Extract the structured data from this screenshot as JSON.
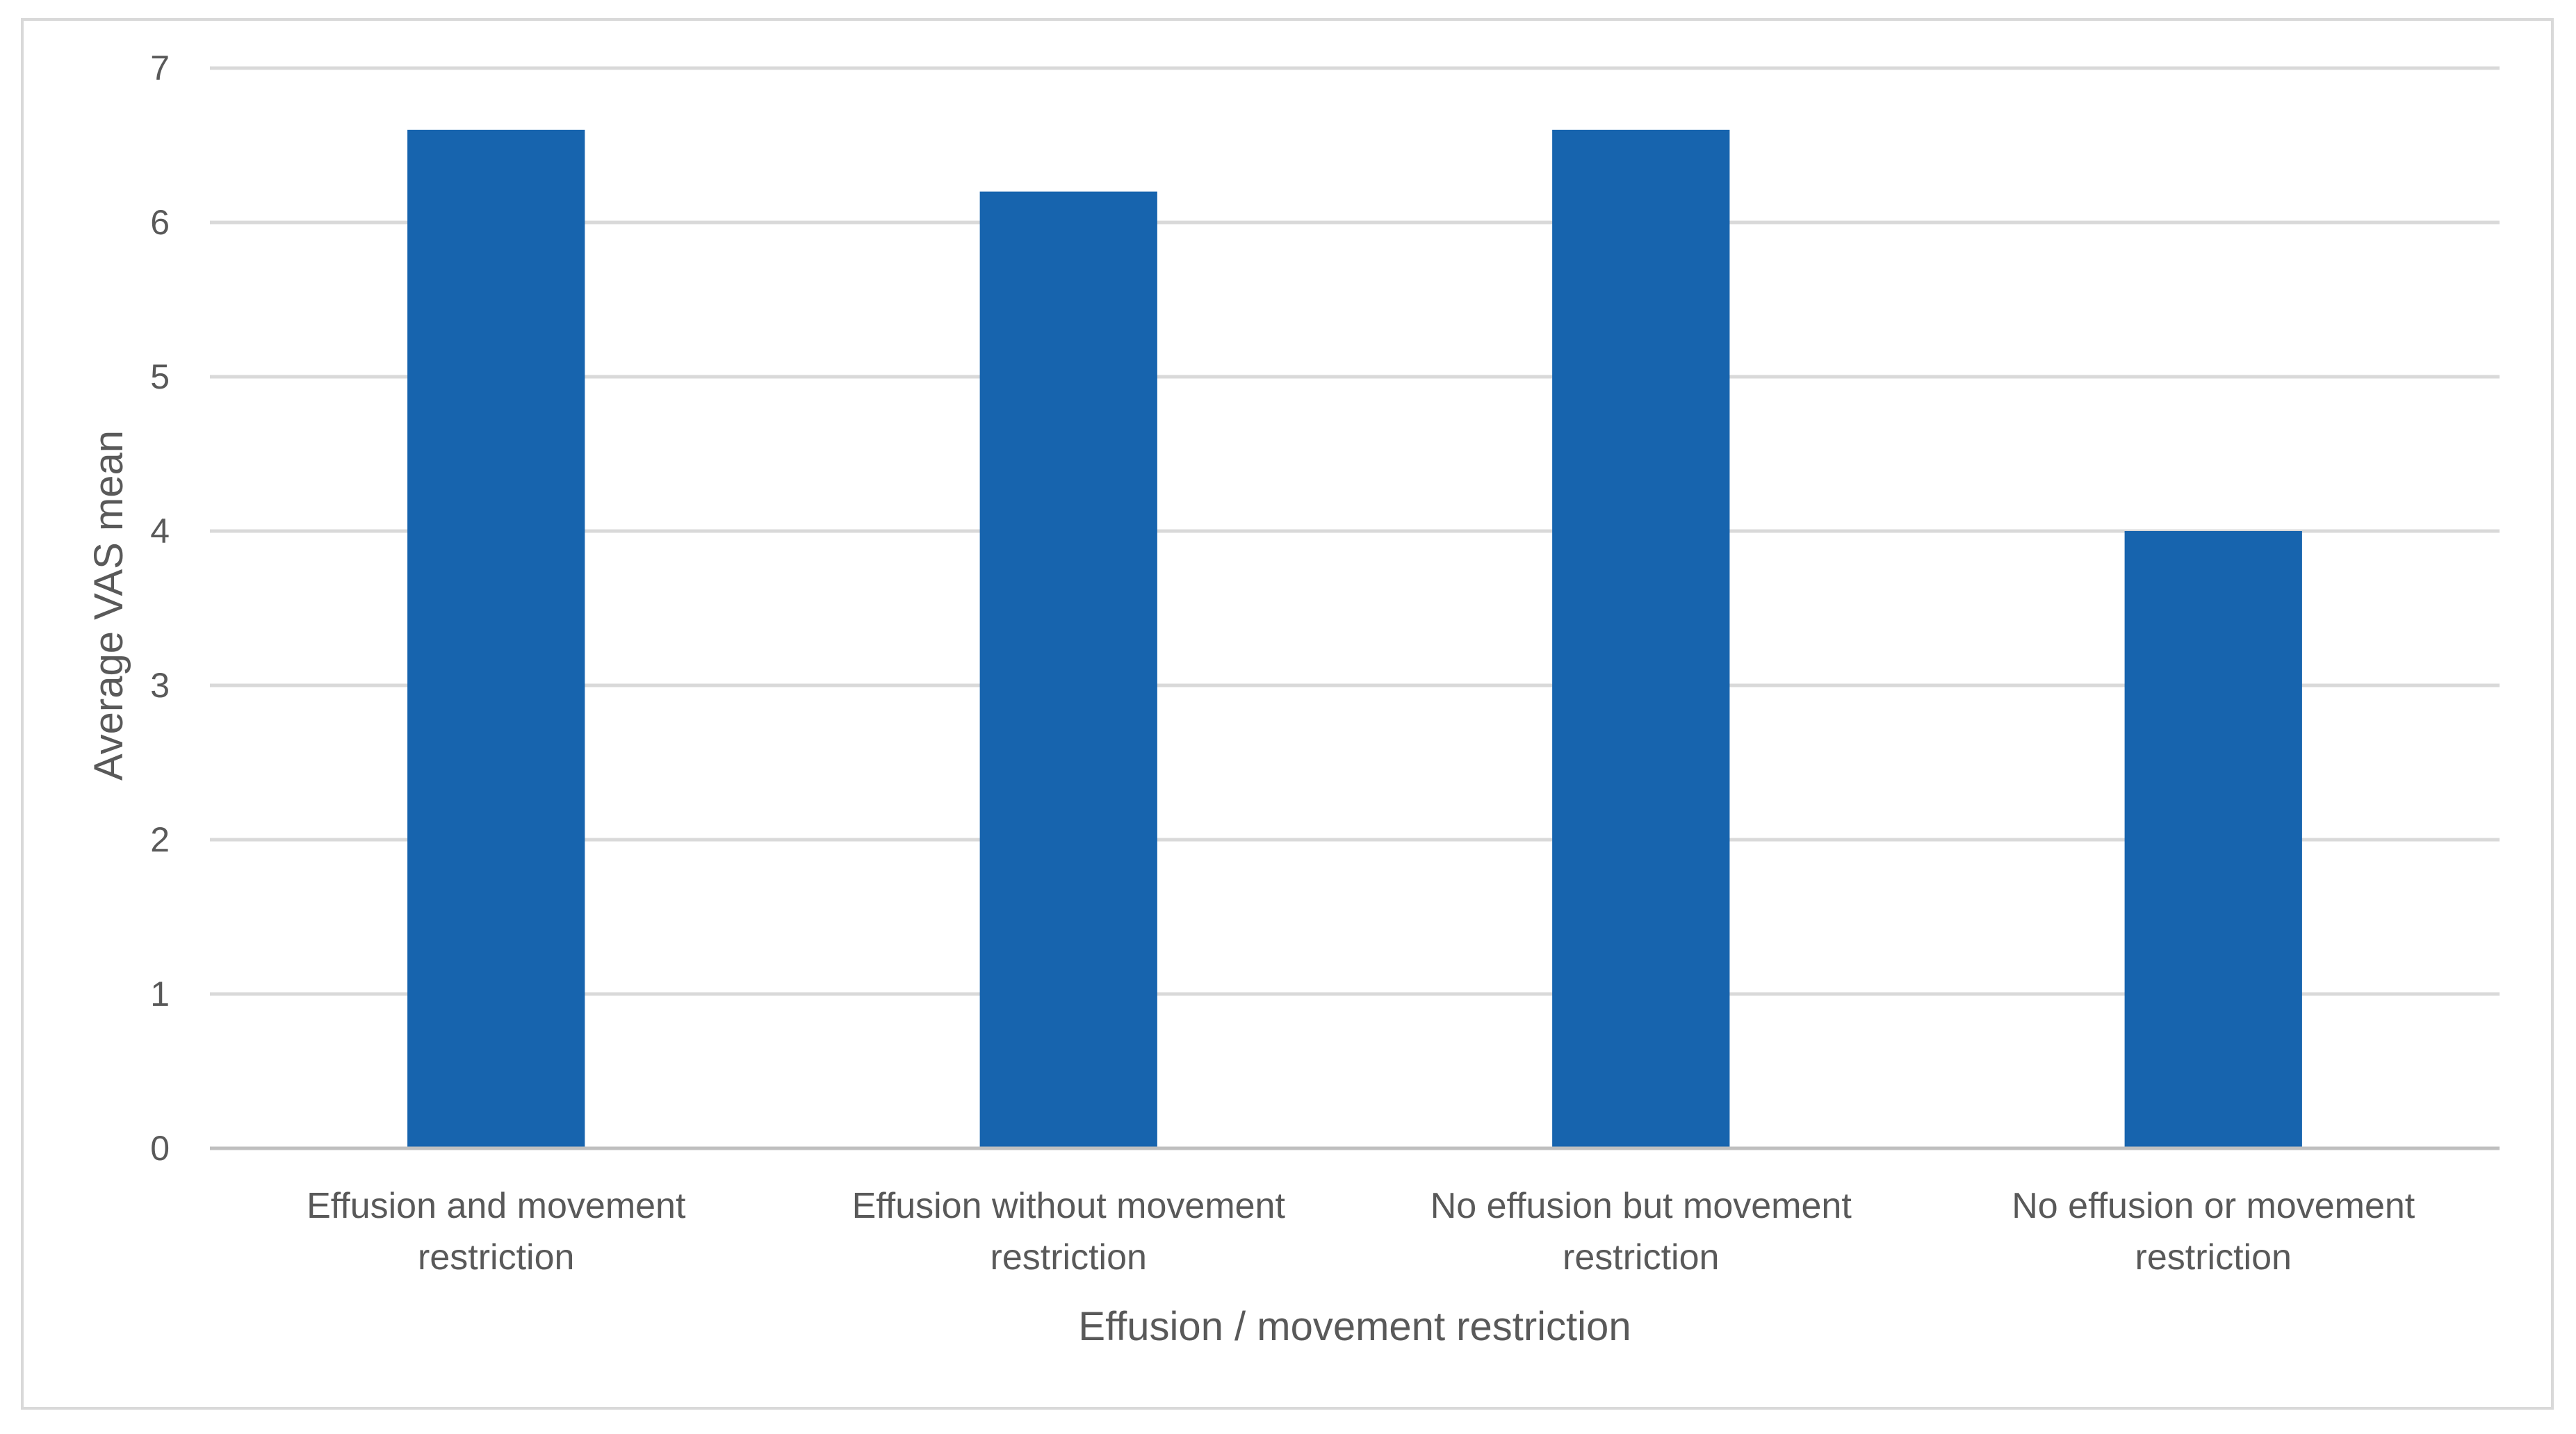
{
  "chart_data": {
    "type": "bar",
    "title": "",
    "xlabel": "Effusion / movement restriction",
    "ylabel": "Average VAS  mean",
    "categories": [
      [
        "Effusion and movement",
        "restriction"
      ],
      [
        "Effusion without movement",
        "restriction"
      ],
      [
        "No effusion but movement",
        "restriction"
      ],
      [
        "No effusion or movement",
        "restriction"
      ]
    ],
    "values": [
      6.6,
      6.2,
      6.6,
      4.0
    ],
    "ylim": [
      0,
      7
    ],
    "yticks": [
      0,
      1,
      2,
      3,
      4,
      5,
      6,
      7
    ],
    "grid": true,
    "legend": "none",
    "colors": {
      "bar": "#1764ae",
      "grid": "#d9d9d9",
      "axis_line": "#bfbfbf",
      "text": "#595959",
      "frame": "#d9d9d9"
    }
  }
}
